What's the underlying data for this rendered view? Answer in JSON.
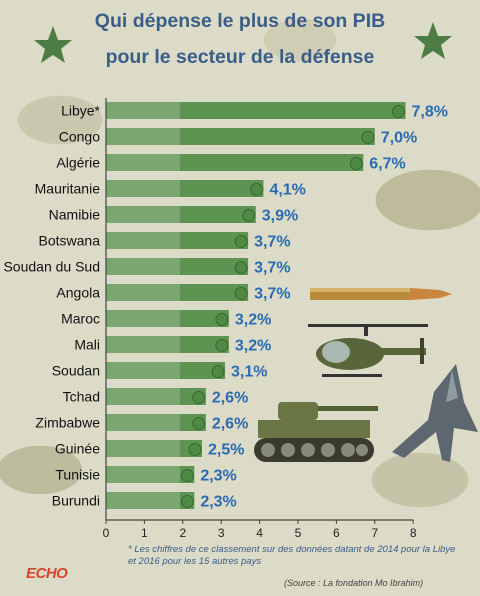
{
  "title_line1": "Qui dépense le plus de son PIB",
  "title_line2": "pour le secteur de la défense",
  "chart_data": {
    "type": "bar",
    "orientation": "horizontal",
    "categories": [
      "Libye*",
      "Congo",
      "Algérie",
      "Mauritanie",
      "Namibie",
      "Botswana",
      "Soudan du Sud",
      "Angola",
      "Maroc",
      "Mali",
      "Soudan",
      "Tchad",
      "Zimbabwe",
      "Guinée",
      "Tunisie",
      "Burundi"
    ],
    "values": [
      7.8,
      7.0,
      6.7,
      4.1,
      3.9,
      3.7,
      3.7,
      3.7,
      3.2,
      3.2,
      3.1,
      2.6,
      2.6,
      2.5,
      2.3,
      2.3
    ],
    "value_labels": [
      "7,8%",
      "7,0%",
      "6,7%",
      "4,1%",
      "3,9%",
      "3,7%",
      "3,7%",
      "3,7%",
      "3,2%",
      "3,2%",
      "3,1%",
      "2,6%",
      "2,6%",
      "2,5%",
      "2,3%",
      "2,3%"
    ],
    "xlim": [
      0,
      8
    ],
    "xticks": [
      "0",
      "1",
      "2",
      "3",
      "4",
      "5",
      "6",
      "7",
      "8"
    ],
    "grid": false,
    "bar_color": "#5d9452",
    "label_color": "#2b6bb3"
  },
  "footnote": "* Les chiffres de ce classement sur des données datant de 2014 pour la Libye et 2016 pour les 15 autres pays",
  "source": "(Source : La fondation Mo Ibrahim)",
  "logo_text": "ECHO",
  "colors": {
    "title": "#3a5d89",
    "star": "#4d7d45",
    "axis": "#444444"
  }
}
